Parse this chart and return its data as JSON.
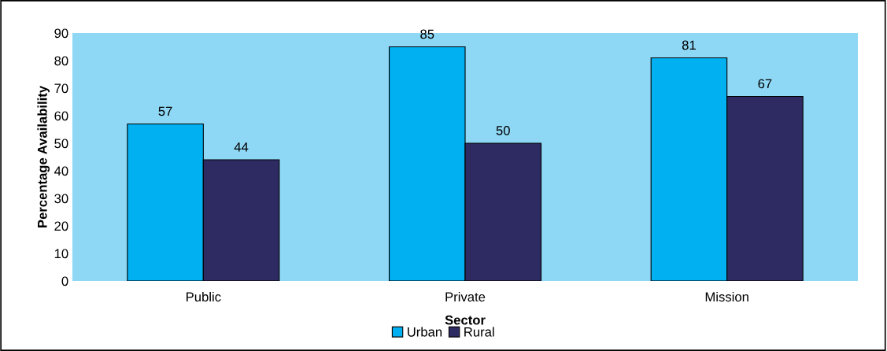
{
  "chart_data": {
    "type": "bar",
    "xlabel": "Sector",
    "ylabel": "Percentage Availability",
    "categories": [
      "Public",
      "Private",
      "Mission"
    ],
    "series": [
      {
        "name": "Urban",
        "color": "#00b0f0",
        "values": [
          57,
          85,
          81
        ]
      },
      {
        "name": "Rural",
        "color": "#2e2b62",
        "values": [
          44,
          50,
          67
        ]
      }
    ],
    "ylim": [
      0,
      90
    ],
    "yticks": [
      0,
      10,
      20,
      30,
      40,
      50,
      60,
      70,
      80,
      90
    ],
    "data_labels": true,
    "grid": false,
    "legend": "bottom"
  }
}
